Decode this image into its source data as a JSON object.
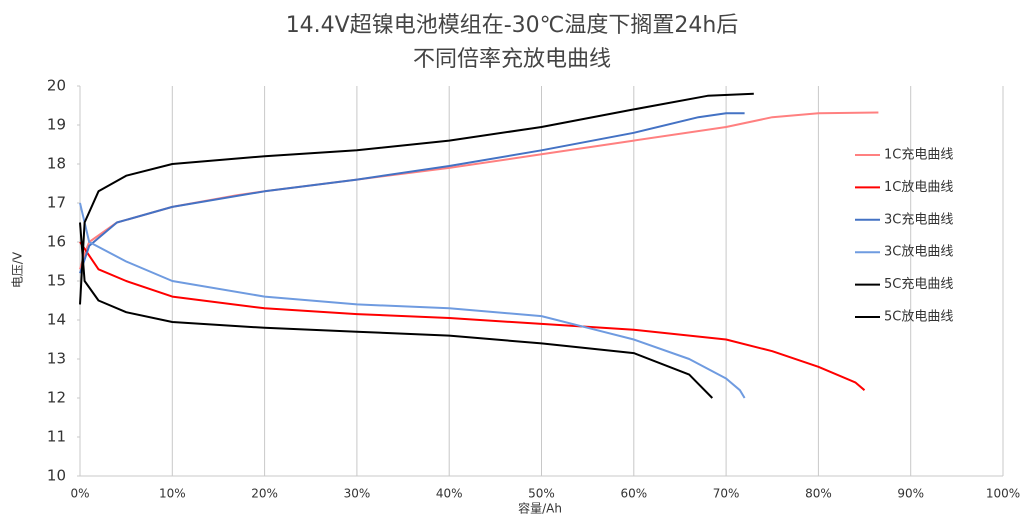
{
  "chart_data": {
    "type": "line",
    "title": [
      "14.4V超镍电池模组在-30℃温度下搁置24h后",
      "不同倍率充放电曲线"
    ],
    "x_label": "容量/Ah",
    "y_label": "电压/V",
    "xlim": [
      0,
      100
    ],
    "ylim": [
      10,
      20
    ],
    "xticks": [
      {
        "value": 0,
        "label": "0%"
      },
      {
        "value": 10,
        "label": "10%"
      },
      {
        "value": 20,
        "label": "20%"
      },
      {
        "value": 30,
        "label": "30%"
      },
      {
        "value": 40,
        "label": "40%"
      },
      {
        "value": 50,
        "label": "50%"
      },
      {
        "value": 60,
        "label": "60%"
      },
      {
        "value": 70,
        "label": "70%"
      },
      {
        "value": 80,
        "label": "80%"
      },
      {
        "value": 90,
        "label": "90%"
      },
      {
        "value": 100,
        "label": "100%"
      }
    ],
    "yticks": [
      10,
      11,
      12,
      13,
      14,
      15,
      16,
      17,
      18,
      19,
      20
    ],
    "grid": true,
    "legend": "right",
    "series": [
      {
        "name": "1C充电曲线",
        "color": "#ff8080",
        "x": [
          0,
          0.5,
          1,
          4,
          10,
          17,
          20,
          30,
          40,
          50,
          60,
          70,
          75,
          80,
          86.5
        ],
        "values": [
          15.3,
          15.7,
          16.0,
          16.5,
          16.9,
          17.2,
          17.3,
          17.6,
          17.9,
          18.25,
          18.6,
          18.95,
          19.2,
          19.3,
          19.32
        ]
      },
      {
        "name": "1C放电曲线",
        "color": "#ff0000",
        "x": [
          0,
          2,
          5,
          10,
          20,
          30,
          40,
          50,
          60,
          70,
          75,
          80,
          84,
          85
        ],
        "values": [
          16.0,
          15.3,
          15.0,
          14.6,
          14.3,
          14.15,
          14.05,
          13.9,
          13.75,
          13.5,
          13.2,
          12.8,
          12.4,
          12.2
        ]
      },
      {
        "name": "3C充电曲线",
        "color": "#4472c4",
        "x": [
          0,
          1,
          4,
          10,
          20,
          30,
          40,
          50,
          60,
          67,
          70,
          72
        ],
        "values": [
          15.2,
          15.9,
          16.5,
          16.9,
          17.3,
          17.6,
          17.95,
          18.35,
          18.8,
          19.2,
          19.3,
          19.3
        ]
      },
      {
        "name": "3C放电曲线",
        "color": "#6f9be0",
        "x": [
          0,
          1,
          5,
          10,
          20,
          30,
          40,
          50,
          55,
          60,
          66,
          70,
          71.5,
          72
        ],
        "values": [
          17.0,
          16.0,
          15.5,
          15.0,
          14.6,
          14.4,
          14.3,
          14.1,
          13.8,
          13.5,
          13.0,
          12.5,
          12.2,
          12.0
        ]
      },
      {
        "name": "5C充电曲线",
        "color": "#000000",
        "x": [
          0,
          0.5,
          2,
          5,
          10,
          20,
          30,
          40,
          50,
          60,
          68,
          73
        ],
        "values": [
          14.4,
          16.5,
          17.3,
          17.7,
          18.0,
          18.2,
          18.35,
          18.6,
          18.95,
          19.4,
          19.75,
          19.8
        ]
      },
      {
        "name": "5C放电曲线",
        "color": "#000000",
        "x": [
          0,
          0.5,
          2,
          5,
          10,
          20,
          30,
          40,
          50,
          60,
          66,
          68.5
        ],
        "values": [
          16.5,
          15.0,
          14.5,
          14.2,
          13.95,
          13.8,
          13.7,
          13.6,
          13.4,
          13.15,
          12.6,
          12.0
        ]
      }
    ]
  }
}
